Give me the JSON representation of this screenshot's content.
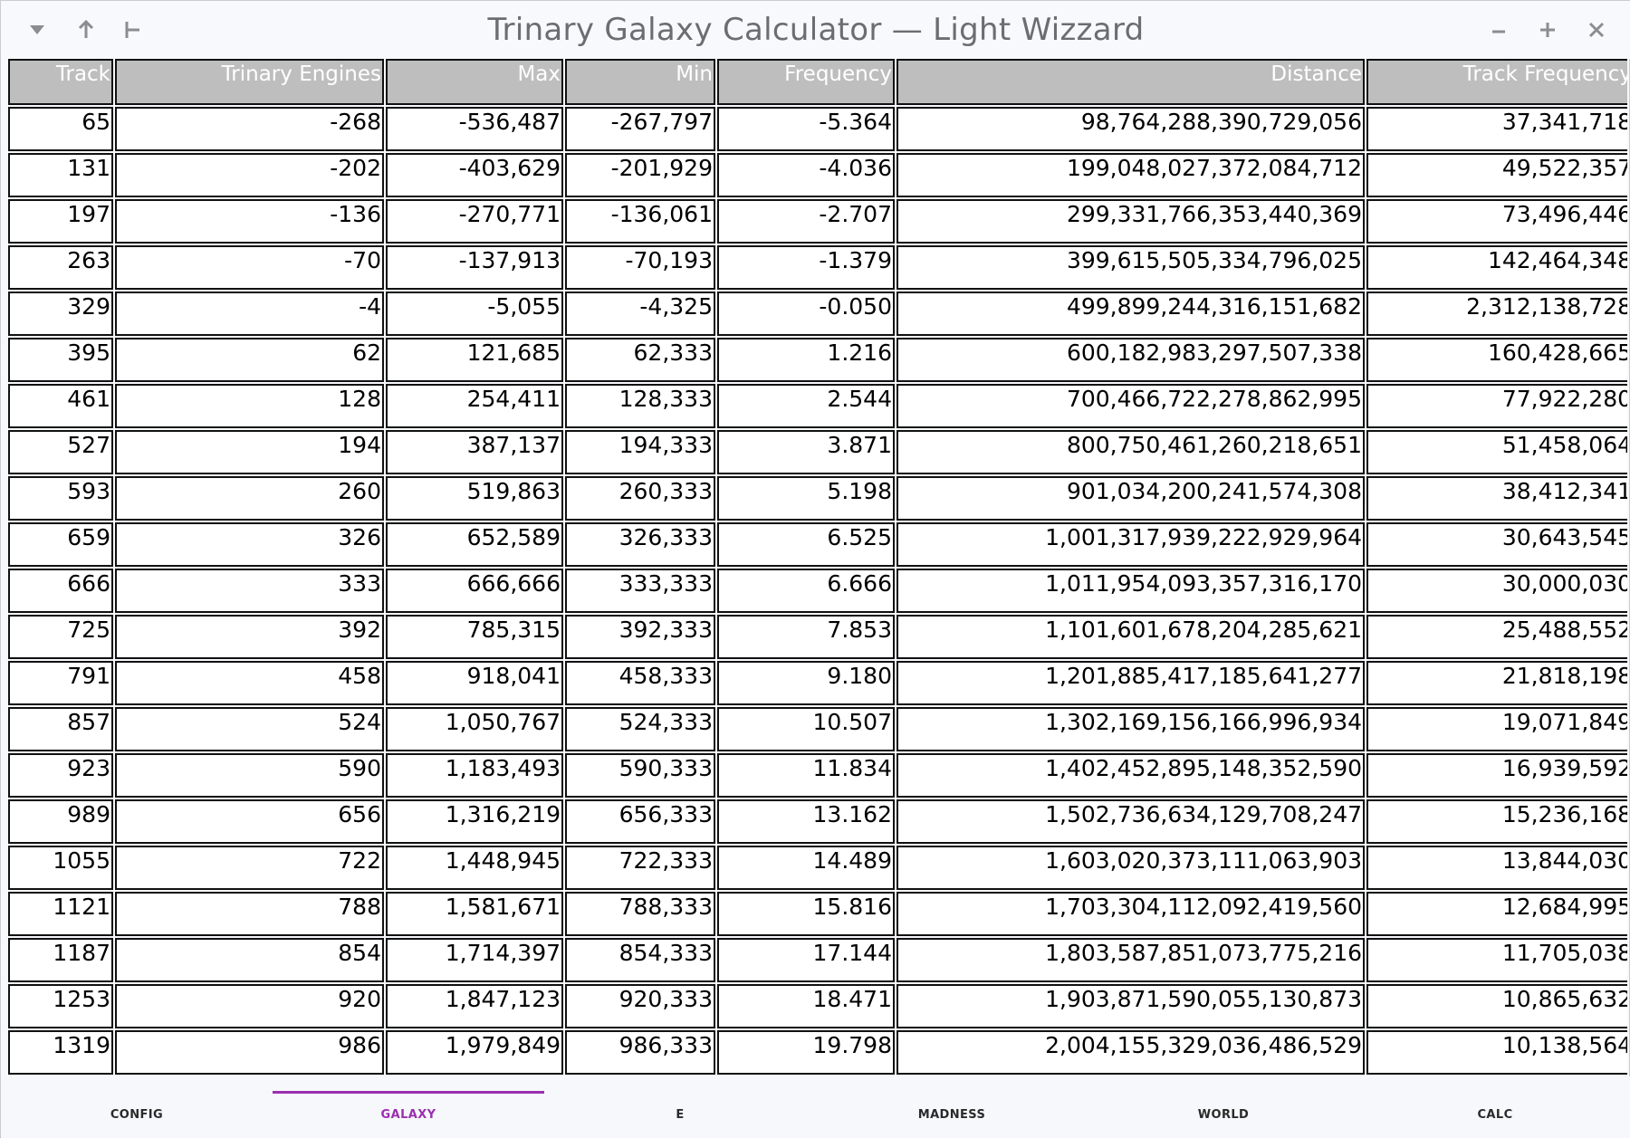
{
  "window": {
    "title": "Trinary Galaxy Calculator — Light Wizzard"
  },
  "titlebar_icons": {
    "menu": "chevron-down-icon",
    "up": "arrow-up-icon",
    "pin": "pin-icon",
    "minimize": "minimize-icon",
    "maximize": "maximize-icon",
    "close": "close-icon"
  },
  "table": {
    "headers": [
      "Track",
      "Trinary Engines",
      "Max",
      "Min",
      "Frequency",
      "Distance",
      "Track Frequency"
    ],
    "rows": [
      [
        "65",
        "-268",
        "-536,487",
        "-267,797",
        "-5.364",
        "98,764,288,390,729,056",
        "37,341,718"
      ],
      [
        "131",
        "-202",
        "-403,629",
        "-201,929",
        "-4.036",
        "199,048,027,372,084,712",
        "49,522,357"
      ],
      [
        "197",
        "-136",
        "-270,771",
        "-136,061",
        "-2.707",
        "299,331,766,353,440,369",
        "73,496,446"
      ],
      [
        "263",
        "-70",
        "-137,913",
        "-70,193",
        "-1.379",
        "399,615,505,334,796,025",
        "142,464,348"
      ],
      [
        "329",
        "-4",
        "-5,055",
        "-4,325",
        "-0.050",
        "499,899,244,316,151,682",
        "2,312,138,728"
      ],
      [
        "395",
        "62",
        "121,685",
        "62,333",
        "1.216",
        "600,182,983,297,507,338",
        "160,428,665"
      ],
      [
        "461",
        "128",
        "254,411",
        "128,333",
        "2.544",
        "700,466,722,278,862,995",
        "77,922,280"
      ],
      [
        "527",
        "194",
        "387,137",
        "194,333",
        "3.871",
        "800,750,461,260,218,651",
        "51,458,064"
      ],
      [
        "593",
        "260",
        "519,863",
        "260,333",
        "5.198",
        "901,034,200,241,574,308",
        "38,412,341"
      ],
      [
        "659",
        "326",
        "652,589",
        "326,333",
        "6.525",
        "1,001,317,939,222,929,964",
        "30,643,545"
      ],
      [
        "666",
        "333",
        "666,666",
        "333,333",
        "6.666",
        "1,011,954,093,357,316,170",
        "30,000,030"
      ],
      [
        "725",
        "392",
        "785,315",
        "392,333",
        "7.853",
        "1,101,601,678,204,285,621",
        "25,488,552"
      ],
      [
        "791",
        "458",
        "918,041",
        "458,333",
        "9.180",
        "1,201,885,417,185,641,277",
        "21,818,198"
      ],
      [
        "857",
        "524",
        "1,050,767",
        "524,333",
        "10.507",
        "1,302,169,156,166,996,934",
        "19,071,849"
      ],
      [
        "923",
        "590",
        "1,183,493",
        "590,333",
        "11.834",
        "1,402,452,895,148,352,590",
        "16,939,592"
      ],
      [
        "989",
        "656",
        "1,316,219",
        "656,333",
        "13.162",
        "1,502,736,634,129,708,247",
        "15,236,168"
      ],
      [
        "1055",
        "722",
        "1,448,945",
        "722,333",
        "14.489",
        "1,603,020,373,111,063,903",
        "13,844,030"
      ],
      [
        "1121",
        "788",
        "1,581,671",
        "788,333",
        "15.816",
        "1,703,304,112,092,419,560",
        "12,684,995"
      ],
      [
        "1187",
        "854",
        "1,714,397",
        "854,333",
        "17.144",
        "1,803,587,851,073,775,216",
        "11,705,038"
      ],
      [
        "1253",
        "920",
        "1,847,123",
        "920,333",
        "18.471",
        "1,903,871,590,055,130,873",
        "10,865,632"
      ],
      [
        "1319",
        "986",
        "1,979,849",
        "986,333",
        "19.798",
        "2,004,155,329,036,486,529",
        "10,138,564"
      ]
    ]
  },
  "tabs": [
    {
      "label": "CONFIG",
      "active": false
    },
    {
      "label": "GALAXY",
      "active": true
    },
    {
      "label": "E",
      "active": false
    },
    {
      "label": "MADNESS",
      "active": false
    },
    {
      "label": "WORLD",
      "active": false
    },
    {
      "label": "CALC",
      "active": false
    }
  ],
  "colors": {
    "active_tab": "#9b2fb0",
    "header_bg": "#bebebe",
    "grid_line": "#111111"
  }
}
